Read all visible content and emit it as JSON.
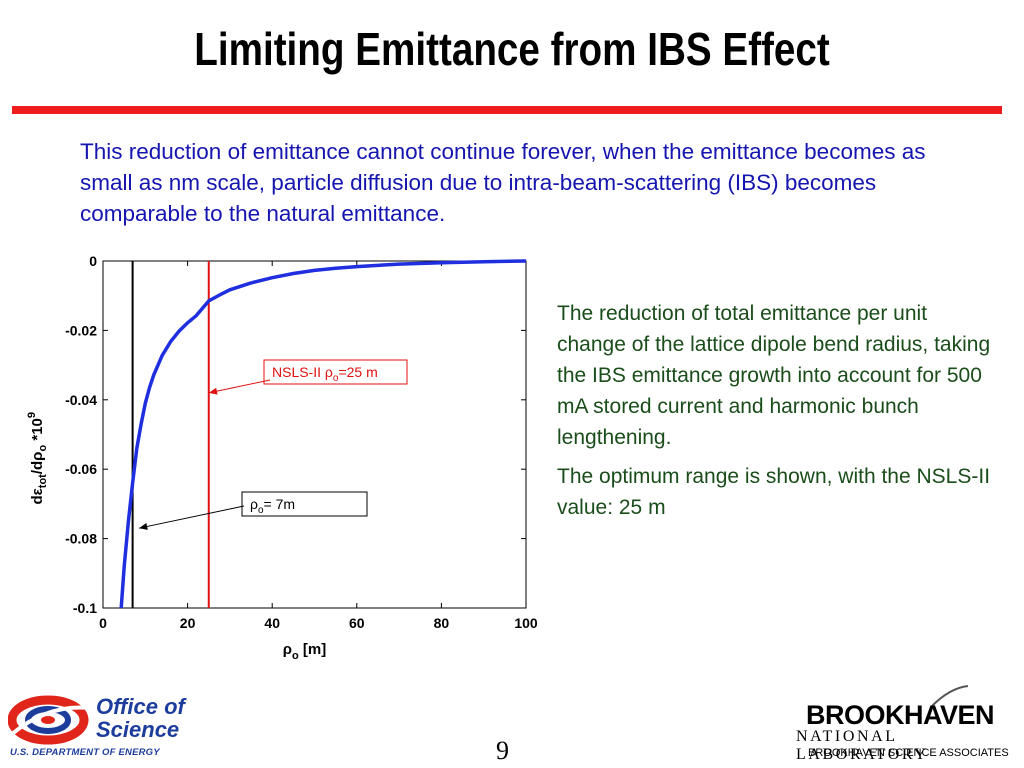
{
  "slide": {
    "title": "Limiting Emittance from IBS Effect",
    "intro": "This reduction of emittance cannot continue forever, when the emittance becomes as small as nm scale, particle diffusion due to intra-beam-scattering (IBS) becomes comparable to the natural emittance.",
    "side_text": [
      "The reduction  of total emittance per unit change of the lattice dipole bend radius, taking the IBS emittance growth into account for 500 mA stored current and harmonic bunch lengthening.",
      "The optimum range is shown, with the NSLS-II value: 25 m"
    ],
    "page_number": "9"
  },
  "footer": {
    "doe_office": "Office of",
    "doe_science": "Science",
    "doe_department": "U.S. DEPARTMENT OF ENERGY",
    "bnl_name": "BROOKHAVEN",
    "bnl_lab": "NATIONAL LABORATORY",
    "bnl_associates": "BROOKHAVEN SCIENCE ASSOCIATES"
  },
  "colors": {
    "title_bar": "#ee1c1c",
    "intro_text": "#1515b0",
    "side_text": "#1a4d1a",
    "curve": "#1f2fe0",
    "marker_black": "#000000",
    "marker_red": "#e01010"
  },
  "chart_data": {
    "type": "line",
    "xlabel": "ρo  [m]",
    "ylabel": "dεtot/dρo *10^9",
    "xlim": [
      0,
      100
    ],
    "ylim": [
      -0.1,
      0
    ],
    "xticks": [
      "0",
      "20",
      "40",
      "60",
      "80",
      "100"
    ],
    "yticks": [
      "0",
      "-0.02",
      "-0.04",
      "-0.06",
      "-0.08",
      "-0.1"
    ],
    "xtick_values": [
      0,
      20,
      40,
      60,
      80,
      100
    ],
    "ytick_values": [
      0,
      -0.02,
      -0.04,
      -0.06,
      -0.08,
      -0.1
    ],
    "grid": false,
    "series": [
      {
        "x": [
          4.3,
          5,
          6,
          7,
          8,
          9,
          10,
          11,
          12,
          14,
          16,
          18,
          20,
          22,
          25,
          28,
          30,
          35,
          40,
          45,
          50,
          55,
          60,
          70,
          80,
          90,
          100
        ],
        "y": [
          -0.1,
          -0.088,
          -0.075,
          -0.064,
          -0.054,
          -0.047,
          -0.041,
          -0.0365,
          -0.0328,
          -0.0272,
          -0.0232,
          -0.0202,
          -0.0178,
          -0.0158,
          -0.0115,
          -0.0095,
          -0.0083,
          -0.0063,
          -0.0048,
          -0.0036,
          -0.0027,
          -0.0021,
          -0.0016,
          -0.0009,
          -0.0005,
          -0.0002,
          0
        ]
      }
    ],
    "vertical_markers": [
      {
        "x": 7,
        "color": "#000000"
      },
      {
        "x": 25,
        "color": "#e01010"
      }
    ],
    "annotations": [
      {
        "text_main": "NSLS-II ρ",
        "sub": "o",
        "text_tail": "=25 m",
        "color": "#e01010",
        "arrow_to_x": 25,
        "arrow_to_y": -0.038
      },
      {
        "text_main": "ρ",
        "sub": "o",
        "text_tail": "= 7m",
        "color": "#000000",
        "arrow_to_x": 8.5,
        "arrow_to_y": -0.077
      }
    ]
  }
}
